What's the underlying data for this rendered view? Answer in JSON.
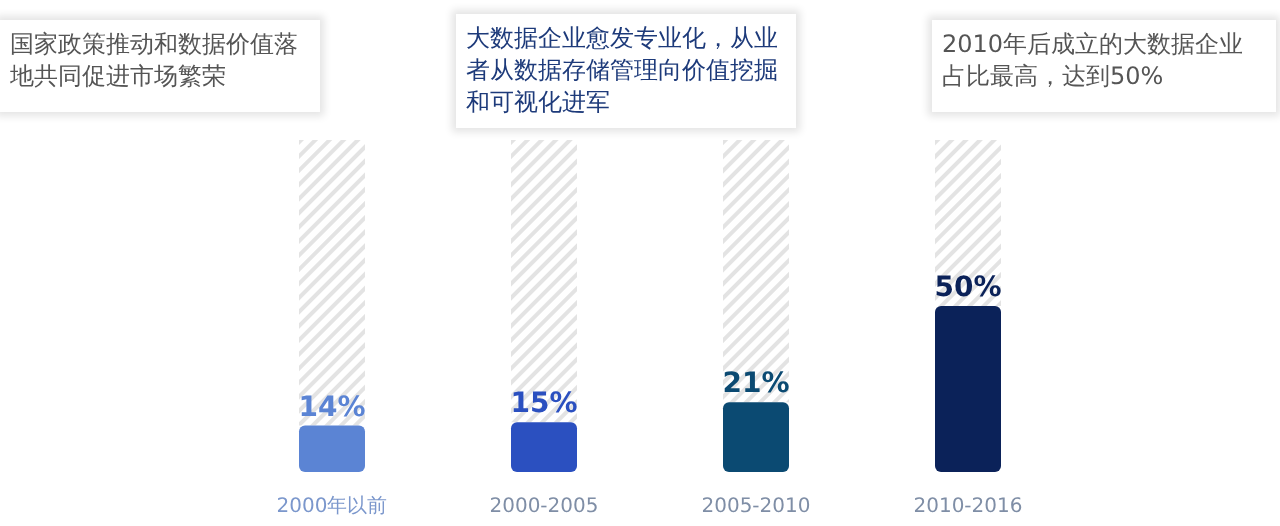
{
  "chart_data": {
    "type": "bar",
    "stacked": true,
    "data_labels": false,
    "categories": [
      "2000年以前",
      "2000-2005",
      "2005-2010",
      "2010-2016"
    ],
    "series": [
      {
        "colors": [
          "#5b84d4",
          "#2b50c0",
          "#0b4a72",
          "#0b2259"
        ],
        "values": [
          14,
          15,
          21,
          50
        ],
        "value_labels": [
          "14%",
          "15%",
          "21%",
          "50%"
        ]
      },
      {
        "color": "#e3e3e3",
        "values": [
          86,
          85,
          79,
          50
        ]
      }
    ],
    "annotations": [
      "国家政策推动和数据价值落地共同促进市场繁荣",
      "大数据企业愈发专业化，从业者从数据存储管理向价值挖掘和可视化进军",
      "2010年后成立的大数据企业占比最高，达到50%"
    ]
  }
}
